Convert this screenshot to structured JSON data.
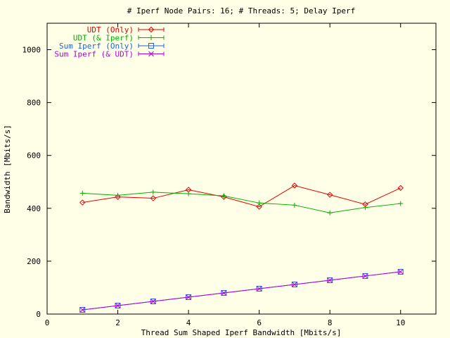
{
  "chart_data": {
    "type": "line",
    "title": "# Iperf Node Pairs: 16; # Threads: 5; Delay Iperf",
    "xlabel": "Thread Sum Shaped Iperf Bandwidth [Mbits/s]",
    "ylabel": "Bandwidth [Mbits/s]",
    "xlim": [
      0,
      11
    ],
    "ylim": [
      0,
      1100
    ],
    "xticks": [
      "0",
      "2",
      "4",
      "6",
      "8",
      "10"
    ],
    "yticks": [
      "0",
      "200",
      "400",
      "600",
      "800",
      "1000"
    ],
    "grid": false,
    "legend_position": "top-left",
    "x": [
      1,
      2,
      3,
      4,
      5,
      6,
      7,
      8,
      9,
      10
    ],
    "series": [
      {
        "name": "UDT (Only)",
        "color": "#e00000",
        "marker": "diamond",
        "values": [
          422,
          443,
          438,
          470,
          443,
          406,
          486,
          451,
          415,
          477
        ]
      },
      {
        "name": "UDT (& Iperf)",
        "color": "#00b000",
        "marker": "plus",
        "values": [
          457,
          449,
          461,
          455,
          447,
          420,
          412,
          383,
          403,
          418
        ]
      },
      {
        "name": "Sum Iperf (Only)",
        "color": "#2060e0",
        "marker": "square",
        "values": [
          16,
          32,
          48,
          64,
          80,
          96,
          112,
          128,
          144,
          160
        ]
      },
      {
        "name": "Sum Iperf (& UDT)",
        "color": "#b000e0",
        "marker": "cross",
        "values": [
          16,
          32,
          48,
          64,
          80,
          96,
          112,
          128,
          144,
          160
        ]
      }
    ]
  }
}
